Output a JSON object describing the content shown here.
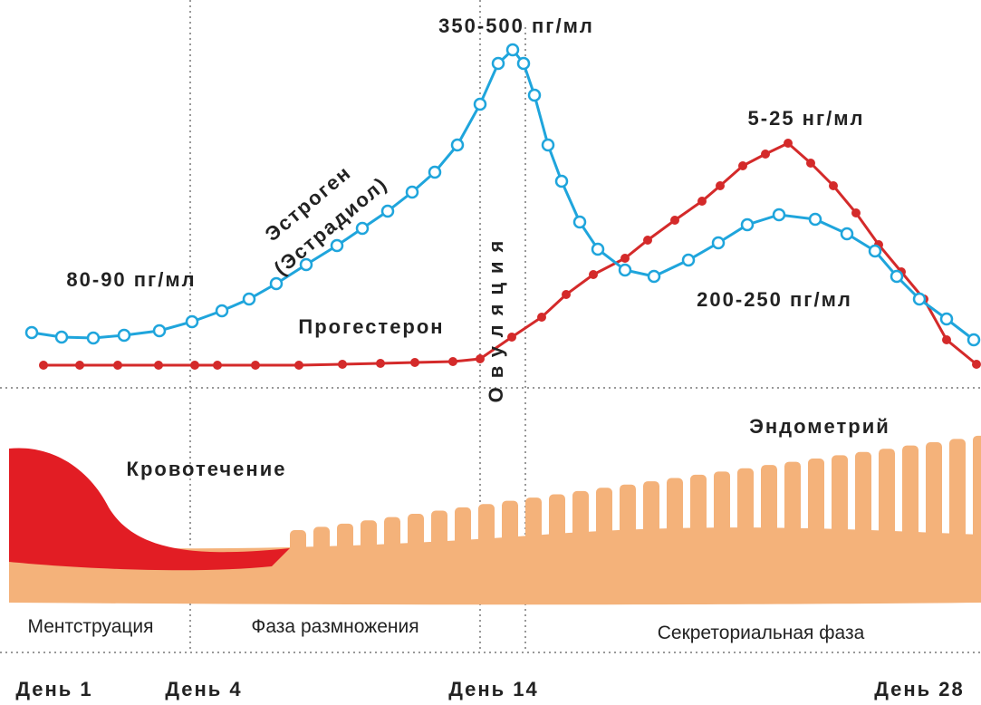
{
  "labels": {
    "estrogen_peak": "350-500 пг/мл",
    "progesterone_peak": "5-25 нг/мл",
    "estrogen_start": "80-90 пг/мл",
    "estrogen_second": "200-250 пг/мл",
    "estrogen": "Эстроген",
    "estradiol": "(Эстрадиол)",
    "progesterone": "Прогестерон",
    "ovulation": "Овуляция",
    "endometrium": "Эндометрий",
    "bleeding": "Кровотечение"
  },
  "phases": [
    "Ментструация",
    "Фаза размножения",
    "Секреториальная фаза"
  ],
  "days": [
    "День 1",
    "День 4",
    "День 14",
    "День 28"
  ]
}
